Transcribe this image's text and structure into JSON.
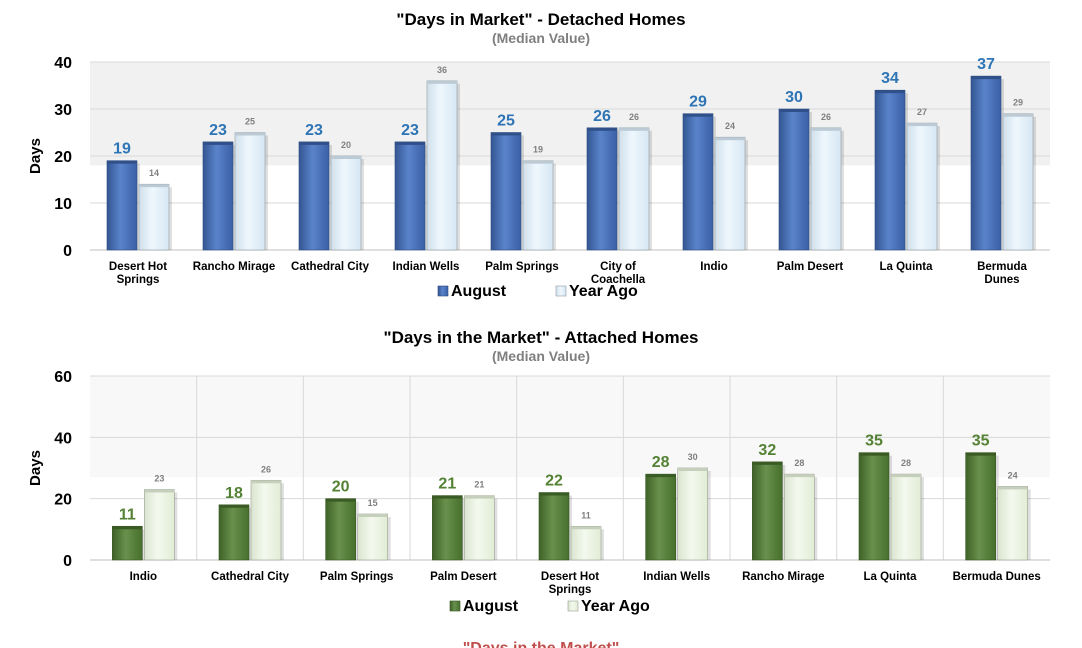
{
  "chart_data": [
    {
      "type": "bar",
      "title": "\"Days in Market\" - Detached Homes",
      "subtitle": "(Median Value)",
      "xlabel": "",
      "ylabel": "Days",
      "ylim": [
        0,
        40
      ],
      "yticks": [
        0,
        10,
        20,
        30,
        40
      ],
      "grid": true,
      "legend_position": "bottom",
      "categories": [
        [
          "Desert Hot",
          "Springs"
        ],
        [
          "Rancho Mirage"
        ],
        [
          "Cathedral City"
        ],
        [
          "Indian Wells"
        ],
        [
          "Palm Springs"
        ],
        [
          "City of",
          "Coachella"
        ],
        [
          "Indio"
        ],
        [
          "Palm Desert"
        ],
        [
          "La Quinta"
        ],
        [
          "Bermuda",
          "Dunes"
        ]
      ],
      "series": [
        {
          "name": "August",
          "values": [
            19,
            23,
            23,
            23,
            25,
            26,
            29,
            30,
            34,
            37
          ],
          "color": "#4472c4",
          "label_color": "#2e75b6"
        },
        {
          "name": "Year Ago",
          "values": [
            14,
            25,
            20,
            36,
            19,
            26,
            24,
            26,
            27,
            29
          ],
          "color": "#ddeefa",
          "label_color": "#7f7f7f"
        }
      ]
    },
    {
      "type": "bar",
      "title": "\"Days in the Market\" - Attached Homes",
      "subtitle": "(Median Value)",
      "xlabel": "",
      "ylabel": "Days",
      "ylim": [
        0,
        60
      ],
      "yticks": [
        0,
        20,
        40,
        60
      ],
      "grid": true,
      "legend_position": "bottom",
      "categories": [
        [
          "Indio"
        ],
        [
          "Cathedral City"
        ],
        [
          "Palm Springs"
        ],
        [
          "Palm Desert"
        ],
        [
          "Desert Hot",
          "Springs"
        ],
        [
          "Indian Wells"
        ],
        [
          "Rancho Mirage"
        ],
        [
          "La Quinta"
        ],
        [
          "Bermuda Dunes"
        ]
      ],
      "series": [
        {
          "name": "August",
          "values": [
            11,
            18,
            20,
            21,
            22,
            28,
            32,
            35,
            35
          ],
          "color": "#548235",
          "label_color": "#548235"
        },
        {
          "name": "Year Ago",
          "values": [
            23,
            26,
            15,
            21,
            11,
            30,
            28,
            28,
            24
          ],
          "color": "#e8f3dc",
          "label_color": "#7f7f7f"
        }
      ]
    }
  ],
  "footer_text": "\"Days in the Market\""
}
